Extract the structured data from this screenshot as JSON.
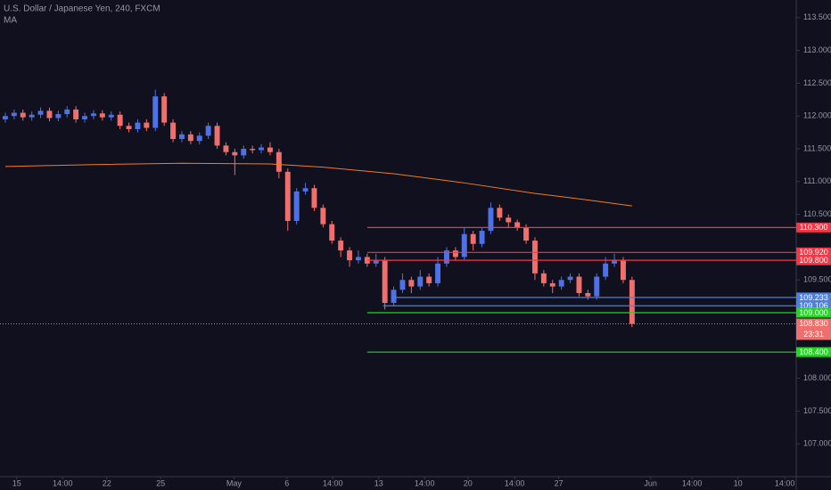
{
  "chart_data": {
    "type": "candlestick",
    "title": "U.S. Dollar / Japanese Yen, 240, FXCM",
    "indicator": {
      "name": "MA",
      "color": "#f57c1f",
      "x": [
        0,
        10,
        20,
        30,
        36,
        44,
        52,
        60,
        66,
        71
      ],
      "values": [
        111.23,
        111.26,
        111.28,
        111.27,
        111.22,
        111.12,
        110.98,
        110.82,
        110.72,
        110.63
      ]
    },
    "up_color": "#4d72e8",
    "down_color": "#ef6f6c",
    "candles": [
      [
        111.95,
        112.05,
        111.9,
        112.0
      ],
      [
        112.0,
        112.1,
        111.95,
        112.05
      ],
      [
        112.05,
        112.1,
        111.93,
        111.98
      ],
      [
        111.98,
        112.07,
        111.93,
        112.02
      ],
      [
        112.02,
        112.13,
        111.97,
        112.08
      ],
      [
        112.08,
        112.13,
        111.92,
        111.97
      ],
      [
        111.97,
        112.08,
        111.92,
        112.03
      ],
      [
        112.03,
        112.15,
        111.98,
        112.1
      ],
      [
        112.1,
        112.15,
        111.9,
        111.95
      ],
      [
        111.95,
        112.05,
        111.9,
        112.0
      ],
      [
        112.0,
        112.09,
        111.95,
        112.04
      ],
      [
        112.04,
        112.09,
        111.93,
        111.98
      ],
      [
        111.98,
        112.07,
        111.93,
        112.02
      ],
      [
        112.02,
        112.07,
        111.8,
        111.85
      ],
      [
        111.85,
        111.9,
        111.75,
        111.8
      ],
      [
        111.8,
        111.95,
        111.75,
        111.9
      ],
      [
        111.9,
        111.95,
        111.77,
        111.82
      ],
      [
        111.82,
        112.4,
        111.77,
        112.3
      ],
      [
        112.3,
        112.35,
        111.85,
        111.9
      ],
      [
        111.9,
        111.95,
        111.6,
        111.65
      ],
      [
        111.65,
        111.77,
        111.6,
        111.72
      ],
      [
        111.72,
        111.77,
        111.57,
        111.62
      ],
      [
        111.62,
        111.75,
        111.57,
        111.7
      ],
      [
        111.7,
        111.9,
        111.65,
        111.85
      ],
      [
        111.85,
        111.9,
        111.5,
        111.55
      ],
      [
        111.55,
        111.6,
        111.4,
        111.45
      ],
      [
        111.45,
        111.5,
        111.1,
        111.4
      ],
      [
        111.4,
        111.55,
        111.35,
        111.5
      ],
      [
        111.5,
        111.55,
        111.43,
        111.48
      ],
      [
        111.48,
        111.57,
        111.43,
        111.52
      ],
      [
        111.52,
        111.6,
        111.4,
        111.45
      ],
      [
        111.45,
        111.5,
        111.05,
        111.15
      ],
      [
        111.15,
        111.2,
        110.25,
        110.4
      ],
      [
        110.4,
        110.9,
        110.35,
        110.85
      ],
      [
        110.85,
        110.98,
        110.8,
        110.9
      ],
      [
        110.9,
        110.95,
        110.55,
        110.6
      ],
      [
        110.6,
        110.65,
        110.3,
        110.35
      ],
      [
        110.35,
        110.4,
        110.05,
        110.1
      ],
      [
        110.1,
        110.15,
        109.85,
        109.95
      ],
      [
        109.95,
        110.0,
        109.7,
        109.8
      ],
      [
        109.8,
        109.95,
        109.75,
        109.85
      ],
      [
        109.85,
        109.9,
        109.7,
        109.75
      ],
      [
        109.75,
        109.9,
        109.7,
        109.8
      ],
      [
        109.8,
        109.85,
        109.05,
        109.15
      ],
      [
        109.15,
        109.4,
        109.1,
        109.35
      ],
      [
        109.35,
        109.6,
        109.3,
        109.5
      ],
      [
        109.5,
        109.55,
        109.3,
        109.4
      ],
      [
        109.4,
        109.65,
        109.35,
        109.55
      ],
      [
        109.55,
        109.6,
        109.4,
        109.45
      ],
      [
        109.45,
        109.85,
        109.4,
        109.75
      ],
      [
        109.75,
        110.0,
        109.7,
        109.95
      ],
      [
        109.95,
        110.0,
        109.8,
        109.85
      ],
      [
        109.85,
        110.3,
        109.8,
        110.2
      ],
      [
        110.2,
        110.25,
        109.95,
        110.05
      ],
      [
        110.05,
        110.3,
        110.0,
        110.25
      ],
      [
        110.25,
        110.68,
        110.2,
        110.6
      ],
      [
        110.6,
        110.65,
        110.4,
        110.45
      ],
      [
        110.45,
        110.5,
        110.3,
        110.38
      ],
      [
        110.38,
        110.42,
        110.25,
        110.3
      ],
      [
        110.3,
        110.35,
        110.05,
        110.1
      ],
      [
        110.1,
        110.15,
        109.5,
        109.6
      ],
      [
        109.6,
        109.65,
        109.4,
        109.45
      ],
      [
        109.45,
        109.5,
        109.3,
        109.4
      ],
      [
        109.4,
        109.55,
        109.35,
        109.5
      ],
      [
        109.5,
        109.6,
        109.45,
        109.55
      ],
      [
        109.55,
        109.6,
        109.25,
        109.3
      ],
      [
        109.3,
        109.35,
        109.2,
        109.25
      ],
      [
        109.25,
        109.6,
        109.2,
        109.55
      ],
      [
        109.55,
        109.85,
        109.5,
        109.75
      ],
      [
        109.75,
        109.9,
        109.7,
        109.8
      ],
      [
        109.8,
        109.85,
        109.45,
        109.5
      ],
      [
        109.5,
        109.55,
        108.78,
        108.83
      ]
    ],
    "levels": [
      {
        "value": 110.3,
        "label": "110.300",
        "color": "#f23645",
        "x_start": 41
      },
      {
        "value": 109.92,
        "label": "109.920",
        "color": "#f23645",
        "x_start": 41
      },
      {
        "value": 109.8,
        "label": "109.800",
        "color": "#f23645",
        "x_start": 41
      },
      {
        "value": 109.233,
        "label": "109.233",
        "color": "#4d7fe0",
        "x_start": 43.8
      },
      {
        "value": 109.106,
        "label": "109.106",
        "color": "#4d7fe0",
        "x_start": 42.8
      },
      {
        "value": 109.0,
        "label": "109.000",
        "color": "#22d622",
        "x_start": 41
      },
      {
        "value": 108.4,
        "label": "108.400",
        "color": "#22d622",
        "x_start": 41
      }
    ],
    "last": {
      "value": 108.83,
      "label": "108.830",
      "countdown": "23:31",
      "color": "#ef6f6c"
    },
    "xlim": [
      -0.6,
      89.6
    ],
    "ylim": [
      106.5,
      113.77
    ],
    "xticks": [
      {
        "value": 1.3,
        "label": "15"
      },
      {
        "value": 6.5,
        "label": "14:00"
      },
      {
        "value": 11.5,
        "label": "22"
      },
      {
        "value": 17.6,
        "label": "25"
      },
      {
        "value": 25.9,
        "label": "May"
      },
      {
        "value": 31.9,
        "label": "6"
      },
      {
        "value": 37.1,
        "label": "14:00"
      },
      {
        "value": 42.3,
        "label": "13"
      },
      {
        "value": 47.5,
        "label": "14:00"
      },
      {
        "value": 52.4,
        "label": "20"
      },
      {
        "value": 57.7,
        "label": "14:00"
      },
      {
        "value": 62.7,
        "label": "27"
      },
      {
        "value": 73.1,
        "label": "Jun"
      },
      {
        "value": 77.8,
        "label": "14:00"
      },
      {
        "value": 83.0,
        "label": "10"
      },
      {
        "value": 88.3,
        "label": "14:00"
      }
    ],
    "yticks": [
      {
        "value": 107,
        "label": "107.000"
      },
      {
        "value": 107.5,
        "label": "107.500"
      },
      {
        "value": 108,
        "label": "108.000"
      },
      {
        "value": 109.5,
        "label": "109.500"
      },
      {
        "value": 110.5,
        "label": "110.500"
      },
      {
        "value": 111,
        "label": "111.000"
      },
      {
        "value": 111.5,
        "label": "111.500"
      },
      {
        "value": 112,
        "label": "112.000"
      },
      {
        "value": 112.5,
        "label": "112.500"
      },
      {
        "value": 113,
        "label": "113.000"
      },
      {
        "value": 113.5,
        "label": "113.500"
      }
    ]
  }
}
